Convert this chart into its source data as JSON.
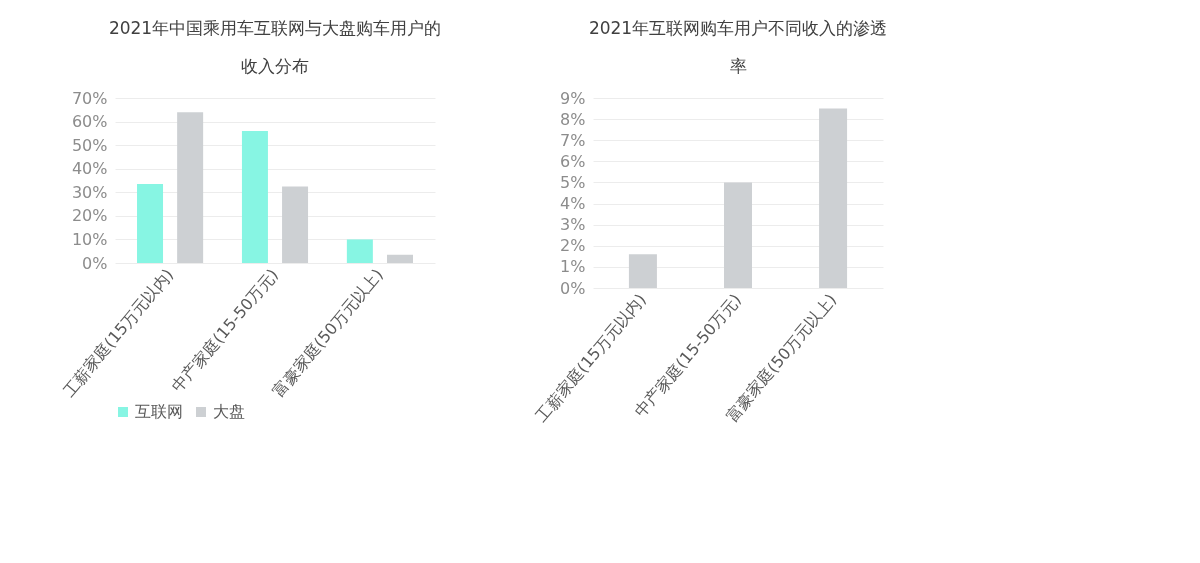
{
  "chart_data": [
    {
      "type": "bar",
      "title": "2021年中国乘用车互联网与大盘购车用户的收入分布",
      "categories": [
        "工薪家庭(15万元以内)",
        "中产家庭(15-50万元)",
        "富豪家庭(50万元以上)"
      ],
      "series": [
        {
          "name": "互联网",
          "color": "#87f5e3",
          "values": [
            33.5,
            56,
            10
          ]
        },
        {
          "name": "大盘",
          "color": "#cdd0d3",
          "values": [
            64,
            32.5,
            3.5
          ]
        }
      ],
      "ylim": [
        0,
        70
      ],
      "yticks": [
        {
          "value": 0,
          "label": "0%"
        },
        {
          "value": 10,
          "label": "10%"
        },
        {
          "value": 20,
          "label": "20%"
        },
        {
          "value": 30,
          "label": "30%"
        },
        {
          "value": 40,
          "label": "40%"
        },
        {
          "value": 50,
          "label": "50%"
        },
        {
          "value": 60,
          "label": "60%"
        },
        {
          "value": 70,
          "label": "70%"
        }
      ],
      "grid": "y",
      "legend": "bottom"
    },
    {
      "type": "bar",
      "title": "2021年互联网购车用户不同收入的渗透率",
      "categories": [
        "工薪家庭(15万元以内)",
        "中产家庭(15-50万元)",
        "富豪家庭(50万元以上)"
      ],
      "series": [
        {
          "color": "#cdd0d3",
          "values": [
            1.6,
            5.0,
            8.5
          ]
        }
      ],
      "ylim": [
        0,
        9
      ],
      "yticks": [
        {
          "value": 0,
          "label": "0%"
        },
        {
          "value": 1,
          "label": "1%"
        },
        {
          "value": 2,
          "label": "2%"
        },
        {
          "value": 3,
          "label": "3%"
        },
        {
          "value": 4,
          "label": "4%"
        },
        {
          "value": 5,
          "label": "5%"
        },
        {
          "value": 6,
          "label": "6%"
        },
        {
          "value": 7,
          "label": "7%"
        },
        {
          "value": 8,
          "label": "8%"
        },
        {
          "value": 9,
          "label": "9%"
        }
      ],
      "grid": "y"
    }
  ]
}
